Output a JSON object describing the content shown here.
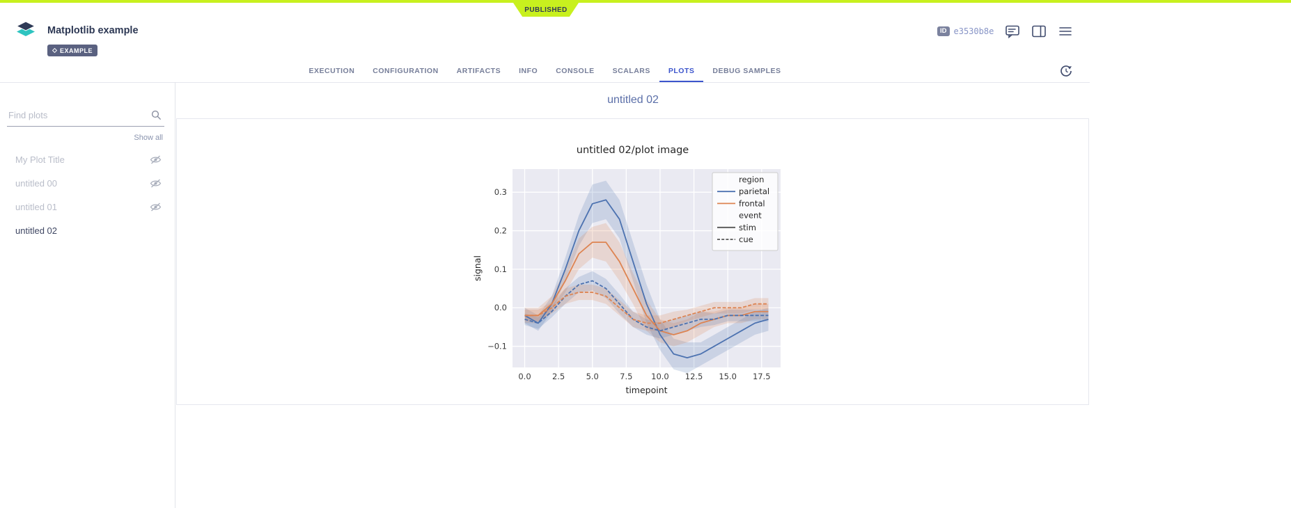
{
  "status_bar": {
    "published_badge": "PUBLISHED",
    "accent_color": "#c8f01e"
  },
  "header": {
    "title": "Matplotlib example",
    "example_badge": "EXAMPLE",
    "id_label": "ID",
    "id_value": "e3530b8e"
  },
  "tabs": {
    "items": [
      {
        "label": "EXECUTION",
        "active": false
      },
      {
        "label": "CONFIGURATION",
        "active": false
      },
      {
        "label": "ARTIFACTS",
        "active": false
      },
      {
        "label": "INFO",
        "active": false
      },
      {
        "label": "CONSOLE",
        "active": false
      },
      {
        "label": "SCALARS",
        "active": false
      },
      {
        "label": "PLOTS",
        "active": true
      },
      {
        "label": "DEBUG SAMPLES",
        "active": false
      }
    ]
  },
  "sidebar": {
    "search_placeholder": "Find plots",
    "show_all_label": "Show all",
    "items": [
      {
        "label": "My Plot Title",
        "hidden": true,
        "selected": false
      },
      {
        "label": "untitled 00",
        "hidden": true,
        "selected": false
      },
      {
        "label": "untitled 01",
        "hidden": true,
        "selected": false
      },
      {
        "label": "untitled 02",
        "hidden": false,
        "selected": true
      }
    ]
  },
  "main": {
    "section_title": "untitled 02"
  },
  "chart_data": {
    "type": "line",
    "title": "untitled 02/plot image",
    "xlabel": "timepoint",
    "ylabel": "signal",
    "xlim": [
      -0.9,
      18.9
    ],
    "ylim": [
      -0.155,
      0.36
    ],
    "xticks": [
      0.0,
      2.5,
      5.0,
      7.5,
      10.0,
      12.5,
      15.0,
      17.5
    ],
    "yticks": [
      -0.1,
      0.0,
      0.1,
      0.2,
      0.3
    ],
    "grid": true,
    "background": "#eaeaf2",
    "grid_color": "#ffffff",
    "x": [
      0,
      1,
      2,
      3,
      4,
      5,
      6,
      7,
      8,
      9,
      10,
      11,
      12,
      13,
      14,
      15,
      16,
      17,
      18
    ],
    "series": [
      {
        "name": "parietal / stim",
        "color": "#4c72b0",
        "dash": "solid",
        "values": [
          -0.02,
          -0.04,
          0.01,
          0.1,
          0.2,
          0.27,
          0.28,
          0.23,
          0.12,
          0.01,
          -0.07,
          -0.12,
          -0.13,
          -0.12,
          -0.1,
          -0.08,
          -0.06,
          -0.04,
          -0.03
        ],
        "ci": [
          0.02,
          0.02,
          0.02,
          0.03,
          0.04,
          0.05,
          0.05,
          0.05,
          0.05,
          0.05,
          0.04,
          0.04,
          0.04,
          0.03,
          0.03,
          0.03,
          0.03,
          0.03,
          0.03
        ]
      },
      {
        "name": "frontal / stim",
        "color": "#dd8452",
        "dash": "solid",
        "values": [
          -0.02,
          -0.02,
          0.01,
          0.07,
          0.14,
          0.17,
          0.17,
          0.12,
          0.05,
          -0.02,
          -0.06,
          -0.07,
          -0.06,
          -0.04,
          -0.03,
          -0.02,
          -0.02,
          -0.01,
          -0.01
        ],
        "ci": [
          0.02,
          0.02,
          0.02,
          0.03,
          0.04,
          0.04,
          0.05,
          0.05,
          0.04,
          0.04,
          0.03,
          0.03,
          0.03,
          0.03,
          0.02,
          0.02,
          0.02,
          0.02,
          0.02
        ]
      },
      {
        "name": "parietal / cue",
        "color": "#4c72b0",
        "dash": "dashed",
        "values": [
          -0.03,
          -0.04,
          -0.01,
          0.03,
          0.06,
          0.07,
          0.05,
          0.01,
          -0.03,
          -0.05,
          -0.06,
          -0.05,
          -0.04,
          -0.03,
          -0.03,
          -0.02,
          -0.02,
          -0.02,
          -0.02
        ],
        "ci": [
          0.015,
          0.015,
          0.015,
          0.02,
          0.02,
          0.025,
          0.025,
          0.025,
          0.02,
          0.02,
          0.02,
          0.02,
          0.02,
          0.02,
          0.015,
          0.015,
          0.015,
          0.015,
          0.015
        ]
      },
      {
        "name": "frontal / cue",
        "color": "#dd8452",
        "dash": "dashed",
        "values": [
          -0.02,
          -0.02,
          0.0,
          0.03,
          0.04,
          0.04,
          0.03,
          0.0,
          -0.03,
          -0.04,
          -0.04,
          -0.03,
          -0.02,
          -0.01,
          0.0,
          0.0,
          0.0,
          0.01,
          0.01
        ],
        "ci": [
          0.015,
          0.015,
          0.015,
          0.02,
          0.02,
          0.02,
          0.02,
          0.02,
          0.02,
          0.02,
          0.02,
          0.02,
          0.015,
          0.015,
          0.015,
          0.015,
          0.015,
          0.015,
          0.015
        ]
      }
    ],
    "legend": {
      "position": "upper right",
      "entries": [
        {
          "label": "region",
          "type": "title"
        },
        {
          "label": "parietal",
          "type": "line",
          "color": "#4c72b0",
          "dash": "solid"
        },
        {
          "label": "frontal",
          "type": "line",
          "color": "#dd8452",
          "dash": "solid"
        },
        {
          "label": "event",
          "type": "title"
        },
        {
          "label": "stim",
          "type": "line",
          "color": "#555555",
          "dash": "solid"
        },
        {
          "label": "cue",
          "type": "line",
          "color": "#555555",
          "dash": "dashed"
        }
      ]
    }
  }
}
